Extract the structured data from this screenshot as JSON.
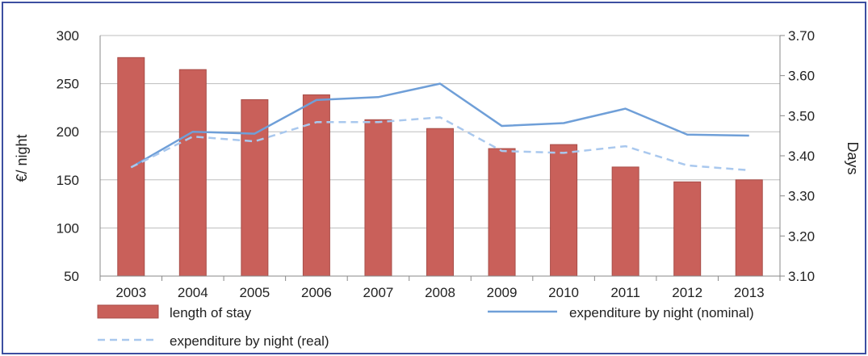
{
  "chart_data": {
    "type": "bar+line",
    "categories": [
      "2003",
      "2004",
      "2005",
      "2006",
      "2007",
      "2008",
      "2009",
      "2010",
      "2011",
      "2012",
      "2013"
    ],
    "ylabel": "€/ night",
    "y2label": "Days",
    "ylim": [
      50,
      300
    ],
    "y2lim": [
      3.1,
      3.7
    ],
    "yticks": [
      "50",
      "100",
      "150",
      "200",
      "250",
      "300"
    ],
    "y2ticks": [
      "3.10",
      "3.20",
      "3.30",
      "3.40",
      "3.50",
      "3.60",
      "3.70"
    ],
    "grid": true,
    "legend_position": "bottom",
    "series": [
      {
        "name": "length of stay",
        "type": "bar",
        "axis": "right",
        "color": "#c9605a",
        "values": [
          3.645,
          3.615,
          3.54,
          3.552,
          3.49,
          3.468,
          3.418,
          3.428,
          3.372,
          3.335,
          3.34
        ]
      },
      {
        "name": "expenditure by night (nominal)",
        "type": "line",
        "axis": "left",
        "color": "#6f9fd8",
        "dash": "solid",
        "values": [
          163,
          200,
          198,
          233,
          236,
          250,
          206,
          209,
          224,
          197,
          196
        ]
      },
      {
        "name": "expenditure by night (real)",
        "type": "line",
        "axis": "left",
        "color": "#a9c8ee",
        "dash": "dashed",
        "values": [
          163,
          195,
          190,
          210,
          210,
          215,
          180,
          178,
          185,
          165,
          160
        ]
      }
    ]
  }
}
